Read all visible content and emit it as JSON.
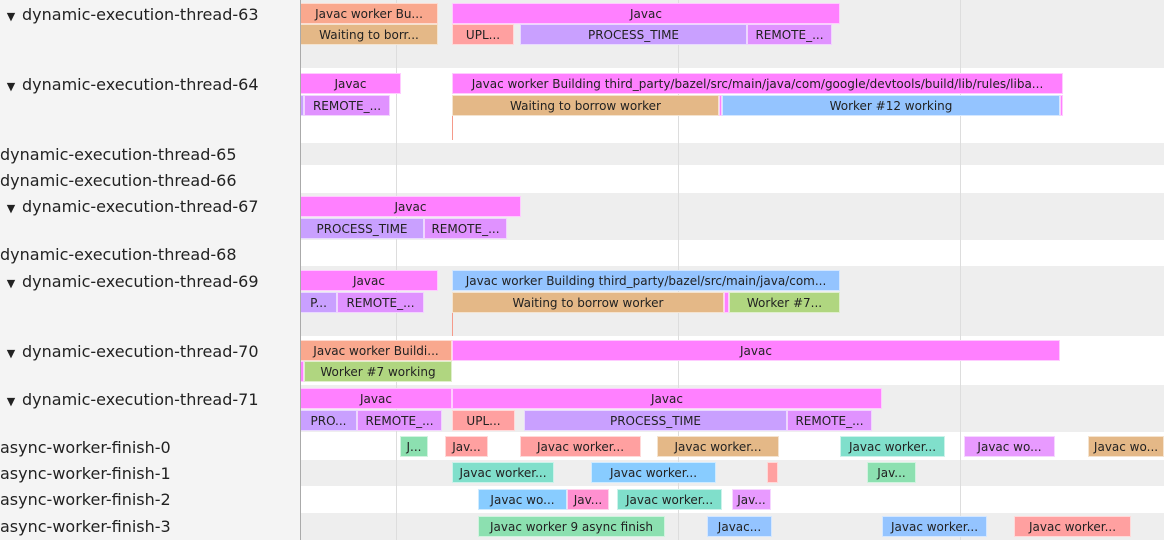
{
  "colors": {
    "pink": "#ff80ff",
    "salmon": "#f9a88e",
    "tan": "#e4b887",
    "red": "#ffa0a0",
    "purple": "#c9a0ff",
    "violet": "#e092ff",
    "blue": "#94c4ff",
    "lblue": "#88ccff",
    "lime": "#b0d680",
    "green": "#8ce0b0",
    "teal": "#80dfcb",
    "rose": "#ff90d0",
    "lilac": "#e89aff",
    "rowAlt": "#eeeeee"
  },
  "tracks": [
    {
      "label": "dynamic-execution-thread-63",
      "expanded": true,
      "icon": "triangle-down-icon",
      "events": [
        "Javac worker Bu...",
        "Javac",
        "Waiting to borr...",
        "UPL...",
        "PROCESS_TIME",
        "REMOTE_..."
      ]
    },
    {
      "label": "dynamic-execution-thread-64",
      "expanded": true,
      "icon": "triangle-down-icon",
      "events": [
        "Javac",
        "Javac worker Building third_party/bazel/src/main/java/com/google/devtools/build/lib/rules/liba...",
        "",
        "REMOTE_...",
        "Waiting to borrow worker",
        "",
        "Worker #12 working",
        ""
      ]
    },
    {
      "label": "dynamic-execution-thread-65",
      "expanded": false,
      "events": []
    },
    {
      "label": "dynamic-execution-thread-66",
      "expanded": false,
      "events": []
    },
    {
      "label": "dynamic-execution-thread-67",
      "expanded": true,
      "icon": "triangle-down-icon",
      "events": [
        "Javac",
        "PROCESS_TIME",
        "REMOTE_..."
      ]
    },
    {
      "label": "dynamic-execution-thread-68",
      "expanded": false,
      "events": []
    },
    {
      "label": "dynamic-execution-thread-69",
      "expanded": true,
      "icon": "triangle-down-icon",
      "events": [
        "Javac",
        "Javac worker Building third_party/bazel/src/main/java/com...",
        "P...",
        "REMOTE_...",
        "Waiting to borrow worker",
        "",
        "Worker #7..."
      ]
    },
    {
      "label": "dynamic-execution-thread-70",
      "expanded": true,
      "icon": "triangle-down-icon",
      "events": [
        "Javac worker Buildi...",
        "Javac",
        "",
        "Worker #7 working"
      ]
    },
    {
      "label": "dynamic-execution-thread-71",
      "expanded": true,
      "icon": "triangle-down-icon",
      "events": [
        "Javac",
        "Javac",
        "PRO...",
        "REMOTE_...",
        "UPL...",
        "PROCESS_TIME",
        "REMOTE_..."
      ]
    },
    {
      "label": "async-worker-finish-0",
      "expanded": false,
      "events": [
        "J...",
        "Jav...",
        "Javac worker...",
        "Javac worker...",
        "Javac worker...",
        "Javac wo...",
        "Javac wo..."
      ]
    },
    {
      "label": "async-worker-finish-1",
      "expanded": false,
      "events": [
        "Javac worker...",
        "Javac worker...",
        "",
        "Jav..."
      ]
    },
    {
      "label": "async-worker-finish-2",
      "expanded": false,
      "events": [
        "Javac wo...",
        "Jav...",
        "Javac worker...",
        "Jav..."
      ]
    },
    {
      "label": "async-worker-finish-3",
      "expanded": false,
      "events": [
        "Javac worker 9 async finish",
        "Javac...",
        "Javac worker...",
        "Javac worker..."
      ]
    }
  ]
}
